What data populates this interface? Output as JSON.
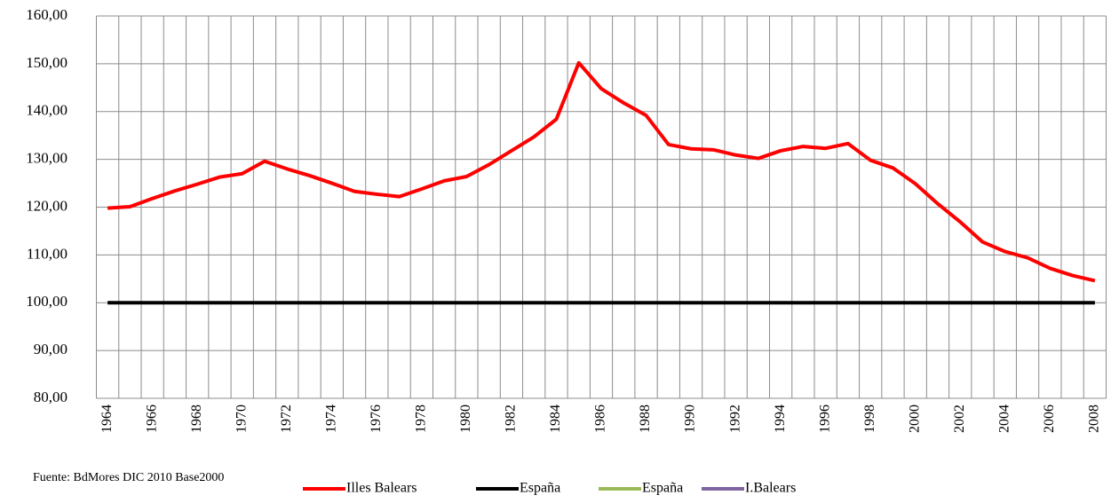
{
  "chart_data": {
    "type": "line",
    "source": "Fuente: BdMores DIC 2010 Base2000",
    "categories": [
      "1964",
      null,
      "1966",
      null,
      "1968",
      null,
      "1970",
      null,
      "1972",
      null,
      "1974",
      null,
      "1976",
      null,
      "1978",
      null,
      "1980",
      null,
      "1982",
      null,
      "1984",
      null,
      "1986",
      null,
      "1988",
      null,
      "1990",
      null,
      "1992",
      null,
      "1994",
      null,
      "1996",
      null,
      "1998",
      null,
      "2000",
      null,
      "2002",
      null,
      "2004",
      null,
      "2006",
      null,
      "2008"
    ],
    "series": [
      {
        "name": "Illes Balears",
        "color": "#ff0000",
        "values": [
          119.8,
          120.1,
          121.8,
          123.4,
          124.8,
          126.3,
          127.0,
          129.6,
          128.0,
          126.6,
          125.0,
          123.3,
          122.7,
          122.2,
          123.8,
          125.5,
          126.4,
          128.9,
          131.8,
          134.7,
          138.4,
          150.2,
          144.8,
          141.8,
          139.2,
          133.1,
          132.2,
          132.0,
          130.9,
          130.2,
          131.8,
          132.7,
          132.3,
          133.3,
          129.8,
          128.2,
          124.9,
          120.7,
          116.9,
          112.7,
          110.7,
          109.4,
          107.2,
          105.7,
          104.6
        ]
      },
      {
        "name": "España",
        "color": "#000000",
        "values": [
          100,
          100,
          100,
          100,
          100,
          100,
          100,
          100,
          100,
          100,
          100,
          100,
          100,
          100,
          100,
          100,
          100,
          100,
          100,
          100,
          100,
          100,
          100,
          100,
          100,
          100,
          100,
          100,
          100,
          100,
          100,
          100,
          100,
          100,
          100,
          100,
          100,
          100,
          100,
          100,
          100,
          100,
          100,
          100,
          100
        ]
      },
      {
        "name": "España",
        "color": "#9bbb59"
      },
      {
        "name": "I.Balears",
        "color": "#8064a2"
      }
    ],
    "ylim": [
      80,
      160
    ],
    "yticks": [
      {
        "value": 80,
        "label": "80,00"
      },
      {
        "value": 90,
        "label": "90,00"
      },
      {
        "value": 100,
        "label": "100,00"
      },
      {
        "value": 110,
        "label": "110,00"
      },
      {
        "value": 120,
        "label": "120,00"
      },
      {
        "value": 130,
        "label": "130,00"
      },
      {
        "value": 140,
        "label": "140,00"
      },
      {
        "value": 150,
        "label": "150,00"
      },
      {
        "value": 160,
        "label": "160,00"
      }
    ],
    "grid": true
  }
}
